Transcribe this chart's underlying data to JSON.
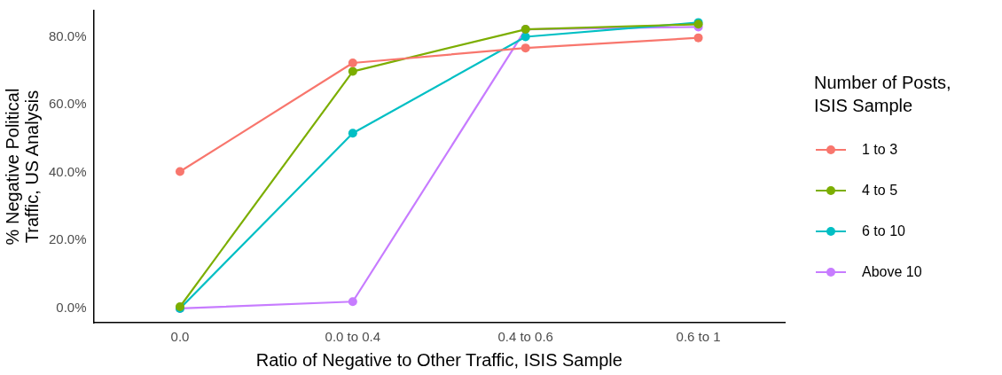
{
  "chart_data": {
    "type": "line",
    "xlabel": "Ratio of Negative to Other Traffic, ISIS Sample",
    "ylabel": "% Negative Political\nTraffic, US Analysis",
    "legend_title": "Number of Posts,\nISIS Sample",
    "categories": [
      "0.0",
      "0.0 to 0.4",
      "0.4 to 0.6",
      "0.6 to 1"
    ],
    "series": [
      {
        "name": "1 to 3",
        "color": "#f8766d",
        "values": [
          40.3,
          72.3,
          76.7,
          79.7
        ]
      },
      {
        "name": "4 to 5",
        "color": "#7cae00",
        "values": [
          0.5,
          69.8,
          82.2,
          83.7
        ]
      },
      {
        "name": "6 to 10",
        "color": "#00bfc4",
        "values": [
          0,
          51.6,
          80.0,
          84.2
        ]
      },
      {
        "name": "Above 10",
        "color": "#c77cff",
        "values": [
          0,
          2.0,
          82.2,
          82.9
        ]
      }
    ],
    "ylim": [
      -4.2,
      87.7
    ],
    "yticks": [
      {
        "value": 0,
        "label": "0.0%"
      },
      {
        "value": 20,
        "label": "20.0%"
      },
      {
        "value": 40,
        "label": "40.0%"
      },
      {
        "value": 60,
        "label": "60.0%"
      },
      {
        "value": 80,
        "label": "80.0%"
      }
    ],
    "grid": false,
    "legend": "right",
    "marker": "circle",
    "line_style": "solid"
  }
}
